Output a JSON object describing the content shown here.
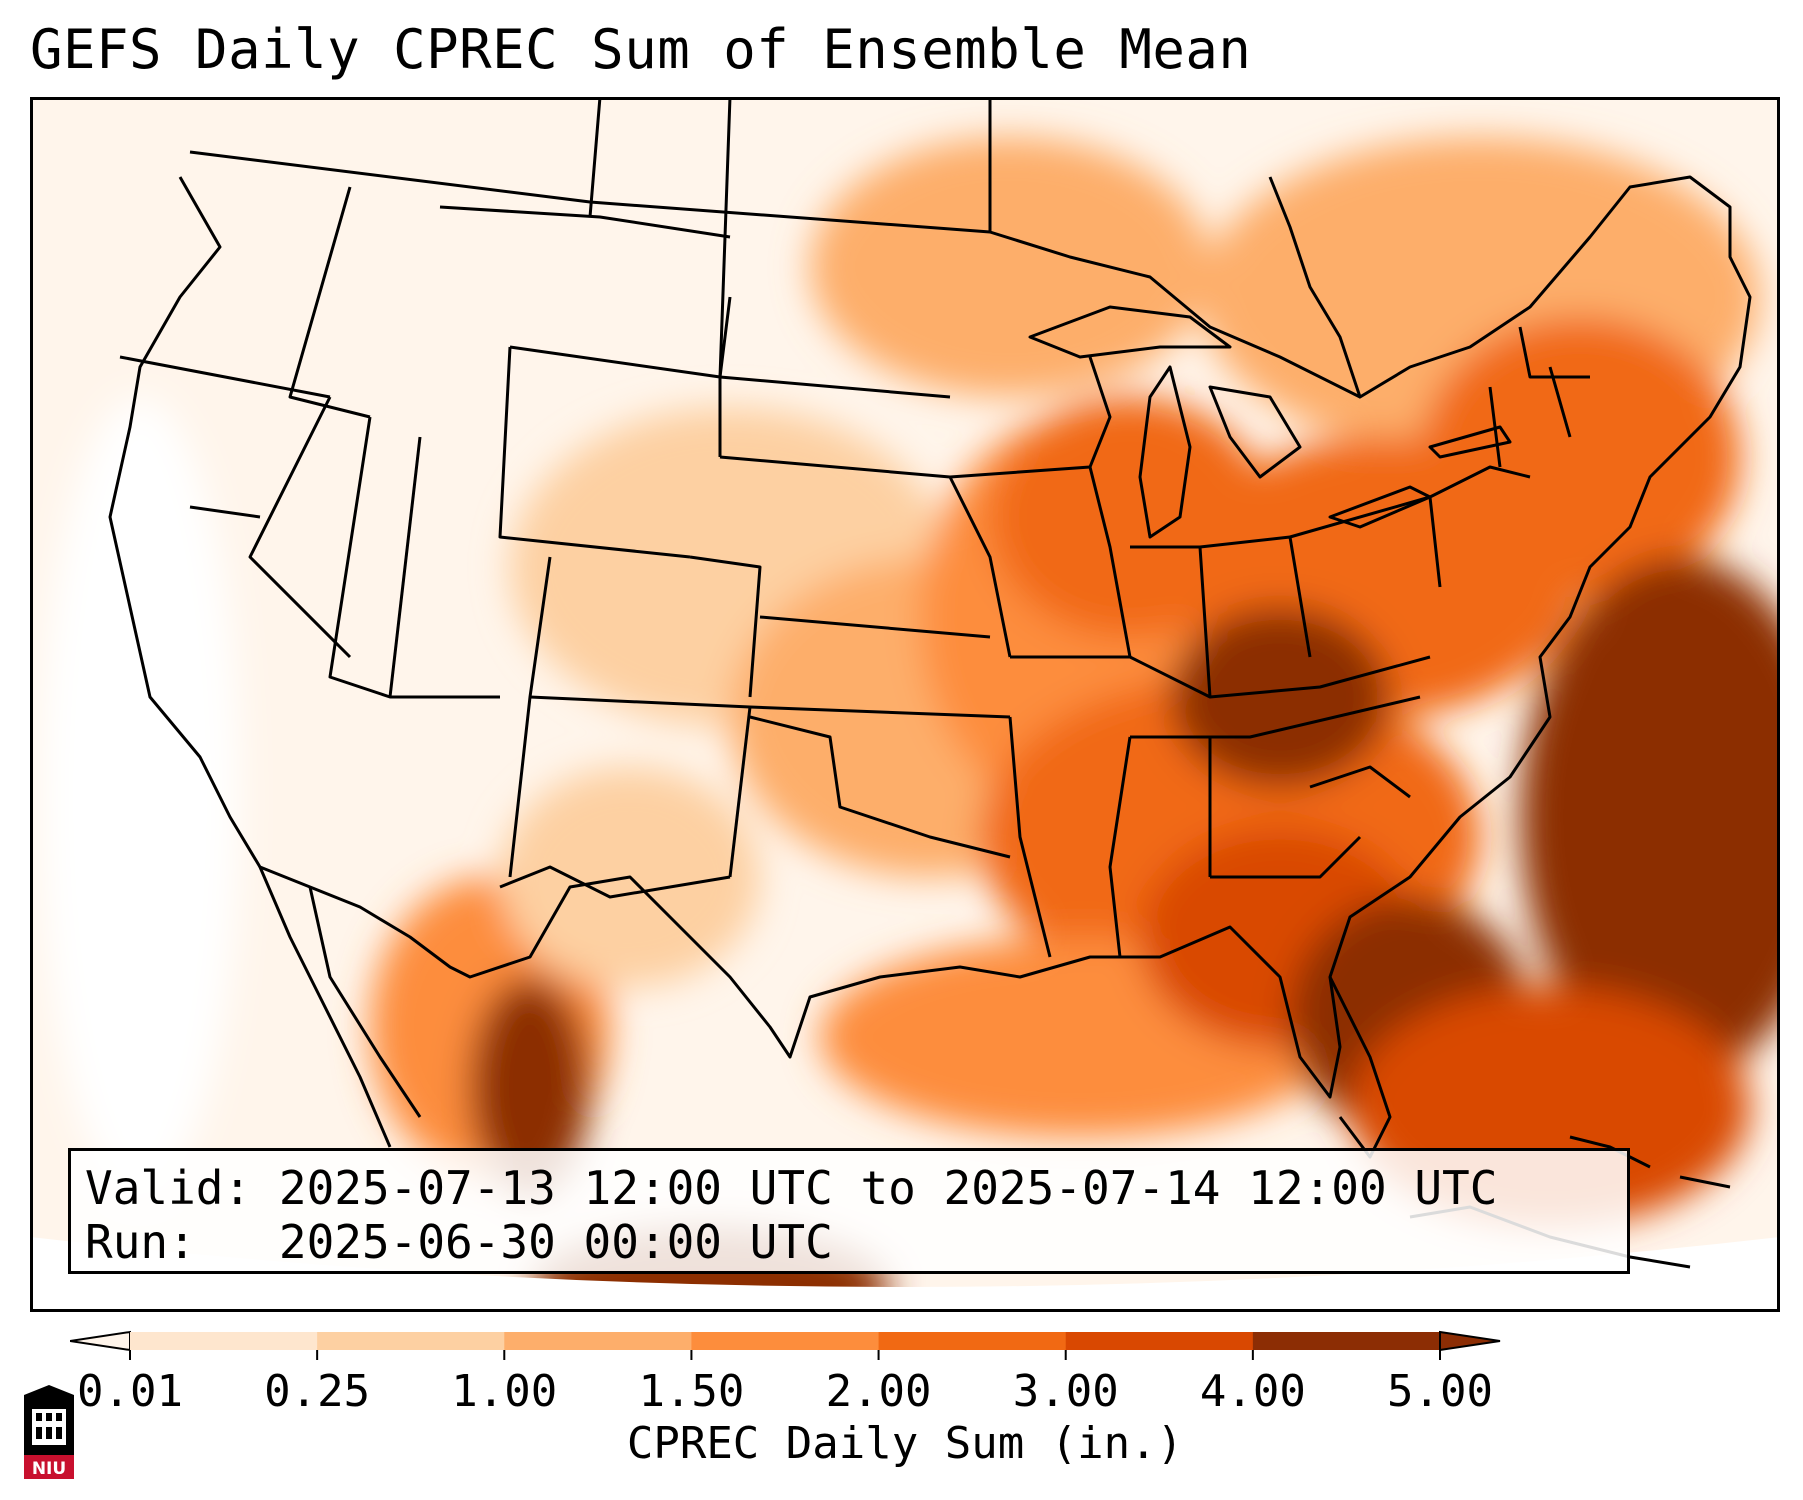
{
  "title": "GEFS Daily CPREC Sum of Ensemble Mean",
  "info": {
    "valid_label": "Valid:",
    "valid_value": "2025-07-13 12:00 UTC to 2025-07-14 12:00 UTC",
    "run_label": "Run:",
    "run_value": "2025-06-30 00:00 UTC"
  },
  "colorbar": {
    "label": "CPREC Daily Sum (in.)",
    "ticks": [
      "0.01",
      "0.25",
      "1.00",
      "1.50",
      "2.00",
      "3.00",
      "4.00",
      "5.00"
    ],
    "colors": [
      "#fff5eb",
      "#fee6ce",
      "#fdd0a2",
      "#fdae6b",
      "#fd8d3c",
      "#f16913",
      "#d94801",
      "#8c2d04"
    ],
    "extend": "both"
  },
  "map": {
    "region": "Contiguous United States",
    "variable": "CPREC daily sum",
    "colormap": "Oranges"
  },
  "logo": {
    "text": "NIU",
    "color": "#c8102e"
  }
}
